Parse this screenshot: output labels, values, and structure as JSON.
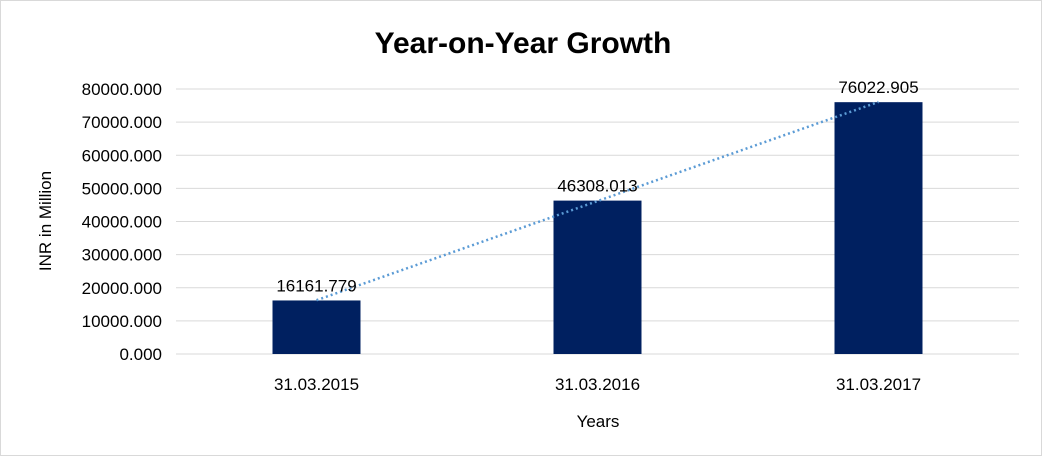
{
  "chart_data": {
    "type": "bar",
    "title": "Year-on-Year Growth",
    "xlabel": "Years",
    "ylabel": "INR in Million",
    "categories": [
      "31.03.2015",
      "31.03.2016",
      "31.03.2017"
    ],
    "values": [
      16161.779,
      46308.013,
      76022.905
    ],
    "data_labels": [
      "16161.779",
      "46308.013",
      "76022.905"
    ],
    "ylim": [
      0,
      80000
    ],
    "yticks": [
      "0.000",
      "10000.000",
      "20000.000",
      "30000.000",
      "40000.000",
      "50000.000",
      "60000.000",
      "70000.000",
      "80000.000"
    ],
    "grid": true,
    "trendline": "linear",
    "legend": "none",
    "colors": {
      "bar": "#002060",
      "trendline": "#5b9bd5",
      "grid": "#d9d9d9"
    }
  }
}
